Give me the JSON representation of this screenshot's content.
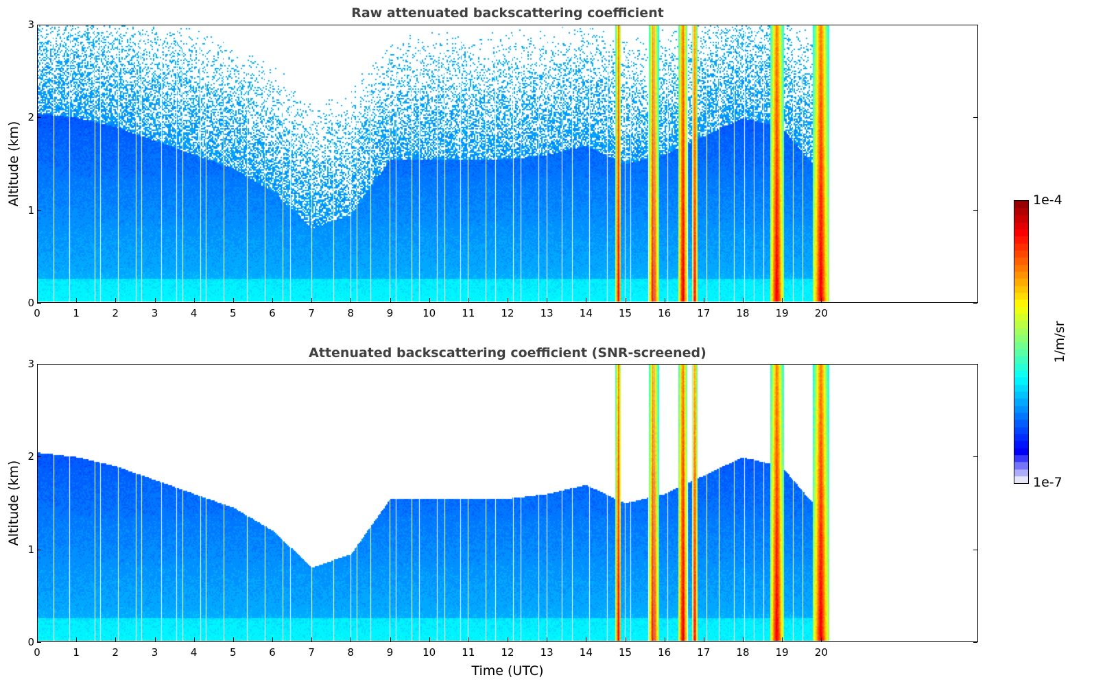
{
  "chart_data": [
    {
      "type": "heatmap",
      "title": "Raw attenuated backscattering coefficient",
      "xlabel": "",
      "ylabel": "Altitude (km)",
      "xlim": [
        0,
        24
      ],
      "ylim": [
        0,
        3
      ],
      "x_ticks": [
        "0",
        "1",
        "2",
        "3",
        "4",
        "5",
        "6",
        "7",
        "8",
        "9",
        "10",
        "11",
        "12",
        "13",
        "14",
        "15",
        "16",
        "17",
        "18",
        "19",
        "20"
      ],
      "y_ticks": [
        "0",
        "1",
        "2",
        "3"
      ],
      "screened": false,
      "data_end_hour": 20.2
    },
    {
      "type": "heatmap",
      "title": "Attenuated backscattering coefficient (SNR-screened)",
      "xlabel": "Time (UTC)",
      "ylabel": "Altitude (km)",
      "xlim": [
        0,
        24
      ],
      "ylim": [
        0,
        3
      ],
      "x_ticks": [
        "0",
        "1",
        "2",
        "3",
        "4",
        "5",
        "6",
        "7",
        "8",
        "9",
        "10",
        "11",
        "12",
        "13",
        "14",
        "15",
        "16",
        "17",
        "18",
        "19",
        "20"
      ],
      "y_ticks": [
        "0",
        "1",
        "2",
        "3"
      ],
      "screened": true,
      "data_end_hour": 20.2
    }
  ],
  "colorbar": {
    "label": "1/m/sr",
    "max_label": "1e-4",
    "min_label": "1e-7",
    "scale": "log",
    "range": [
      1e-07,
      0.0001
    ],
    "colormap": "jet"
  },
  "features": {
    "boundary_layer_top_km": [
      [
        0,
        2.05
      ],
      [
        1,
        2.0
      ],
      [
        2,
        1.9
      ],
      [
        3,
        1.75
      ],
      [
        4,
        1.6
      ],
      [
        5,
        1.45
      ],
      [
        6,
        1.2
      ],
      [
        7,
        0.8
      ],
      [
        8,
        0.95
      ],
      [
        9,
        1.55
      ],
      [
        10,
        1.55
      ],
      [
        11,
        1.55
      ],
      [
        12,
        1.55
      ],
      [
        13,
        1.6
      ],
      [
        14,
        1.7
      ],
      [
        15,
        1.5
      ],
      [
        16,
        1.6
      ],
      [
        17,
        1.8
      ],
      [
        18,
        2.0
      ],
      [
        19,
        1.9
      ],
      [
        20,
        1.4
      ],
      [
        20.2,
        1.4
      ]
    ],
    "precip_columns_hours": [
      [
        14.75,
        14.9
      ],
      [
        15.6,
        15.85
      ],
      [
        16.35,
        16.6
      ],
      [
        16.7,
        16.85
      ],
      [
        18.7,
        19.05
      ],
      [
        19.8,
        20.2
      ]
    ],
    "gap_lines_hours": [
      0.4,
      0.8,
      1.45,
      1.6,
      2.05,
      2.5,
      2.65,
      3.15,
      3.55,
      3.7,
      4.15,
      4.3,
      4.75,
      5.35,
      5.8,
      6.25,
      6.45,
      7.0,
      7.55,
      8.0,
      8.15,
      8.5,
      9.0,
      9.15,
      9.55,
      9.75,
      10.2,
      10.4,
      10.8,
      11.0,
      11.45,
      11.7,
      12.15,
      12.35,
      12.8,
      13.0,
      13.4,
      13.65,
      14.1,
      14.55,
      15.0,
      15.15,
      15.6,
      15.75,
      16.1,
      16.6,
      16.75,
      17.1,
      17.4,
      17.8,
      18.05,
      18.3,
      18.55,
      19.3,
      19.55
    ]
  }
}
